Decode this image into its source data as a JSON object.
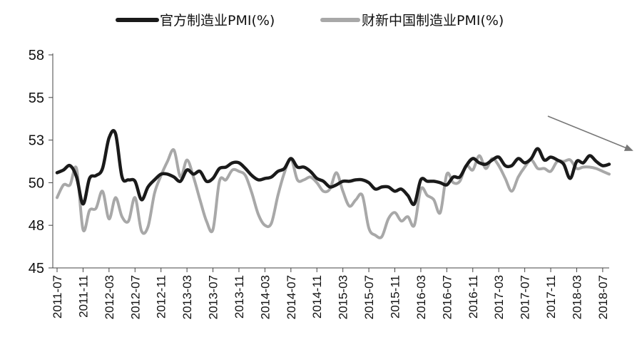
{
  "chart_data": {
    "type": "line",
    "title": "",
    "xlabel": "",
    "ylabel": "",
    "y_ticks": [
      45,
      48,
      50,
      53,
      55,
      58
    ],
    "ylim": [
      45,
      58
    ],
    "x_tick_labels": [
      "2011-07",
      "2011-11",
      "2012-03",
      "2012-07",
      "2012-11",
      "2013-03",
      "2013-07",
      "2013-11",
      "2014-03",
      "2014-07",
      "2014-11",
      "2015-03",
      "2015-07",
      "2015-11",
      "2016-03",
      "2016-07",
      "2016-11",
      "2017-03",
      "2017-07",
      "2017-11",
      "2018-03",
      "2018-07"
    ],
    "legend_position": "top",
    "annotations": [
      "downward trend arrow at top-right"
    ],
    "x": [
      "2011-07",
      "2011-08",
      "2011-09",
      "2011-10",
      "2011-11",
      "2011-12",
      "2012-01",
      "2012-02",
      "2012-03",
      "2012-04",
      "2012-05",
      "2012-06",
      "2012-07",
      "2012-08",
      "2012-09",
      "2012-10",
      "2012-11",
      "2012-12",
      "2013-01",
      "2013-02",
      "2013-03",
      "2013-04",
      "2013-05",
      "2013-06",
      "2013-07",
      "2013-08",
      "2013-09",
      "2013-10",
      "2013-11",
      "2013-12",
      "2014-01",
      "2014-02",
      "2014-03",
      "2014-04",
      "2014-05",
      "2014-06",
      "2014-07",
      "2014-08",
      "2014-09",
      "2014-10",
      "2014-11",
      "2014-12",
      "2015-01",
      "2015-02",
      "2015-03",
      "2015-04",
      "2015-05",
      "2015-06",
      "2015-07",
      "2015-08",
      "2015-09",
      "2015-10",
      "2015-11",
      "2015-12",
      "2016-01",
      "2016-02",
      "2016-03",
      "2016-04",
      "2016-05",
      "2016-06",
      "2016-07",
      "2016-08",
      "2016-09",
      "2016-10",
      "2016-11",
      "2016-12",
      "2017-01",
      "2017-02",
      "2017-03",
      "2017-04",
      "2017-05",
      "2017-06",
      "2017-07",
      "2017-08",
      "2017-09",
      "2017-10",
      "2017-11",
      "2017-12",
      "2018-01",
      "2018-02",
      "2018-03",
      "2018-04",
      "2018-05",
      "2018-06",
      "2018-07",
      "2018-08"
    ],
    "series": [
      {
        "name": "官方制造业PMI(%)",
        "color": "#1a1a1a",
        "values": [
          50.7,
          50.9,
          51.2,
          50.4,
          49.0,
          50.3,
          50.5,
          51.0,
          53.1,
          53.3,
          50.4,
          50.2,
          50.1,
          49.2,
          49.8,
          50.2,
          50.6,
          50.6,
          50.4,
          50.1,
          50.9,
          50.6,
          50.8,
          50.1,
          50.3,
          51.0,
          51.1,
          51.4,
          51.4,
          51.0,
          50.5,
          50.2,
          50.3,
          50.4,
          50.8,
          51.0,
          51.7,
          51.1,
          51.1,
          50.8,
          50.3,
          50.1,
          49.8,
          49.9,
          50.1,
          50.1,
          50.2,
          50.2,
          50.0,
          49.7,
          49.8,
          49.8,
          49.6,
          49.7,
          49.4,
          49.0,
          50.2,
          50.1,
          50.1,
          50.0,
          49.9,
          50.4,
          50.4,
          51.2,
          51.7,
          51.4,
          51.3,
          51.6,
          51.8,
          51.2,
          51.2,
          51.7,
          51.4,
          51.7,
          52.4,
          51.6,
          51.8,
          51.6,
          51.3,
          50.3,
          51.5,
          51.4,
          51.9,
          51.5,
          51.2,
          51.3
        ]
      },
      {
        "name": "财新中国制造业PMI(%)",
        "color": "#a8a8a8",
        "values": [
          49.3,
          49.9,
          49.9,
          51.0,
          47.7,
          48.7,
          48.8,
          49.6,
          48.3,
          49.3,
          48.4,
          48.2,
          49.3,
          47.6,
          47.9,
          49.5,
          50.5,
          51.5,
          52.3,
          50.4,
          51.6,
          50.4,
          49.2,
          48.2,
          47.7,
          50.1,
          50.2,
          50.9,
          50.8,
          50.5,
          49.5,
          48.5,
          48.0,
          48.1,
          49.4,
          50.7,
          51.7,
          50.2,
          50.2,
          50.4,
          50.0,
          49.6,
          49.7,
          50.7,
          49.6,
          48.9,
          49.2,
          49.4,
          47.8,
          47.3,
          47.2,
          48.3,
          48.6,
          48.2,
          48.4,
          48.0,
          49.7,
          49.4,
          49.2,
          48.6,
          50.6,
          50.0,
          50.1,
          51.2,
          50.9,
          51.9,
          51.0,
          51.7,
          51.2,
          50.3,
          49.6,
          50.4,
          51.1,
          51.6,
          51.0,
          51.0,
          50.8,
          51.5,
          51.5,
          51.6,
          51.0,
          51.1,
          51.1,
          51.0,
          50.8,
          50.6
        ]
      }
    ]
  }
}
